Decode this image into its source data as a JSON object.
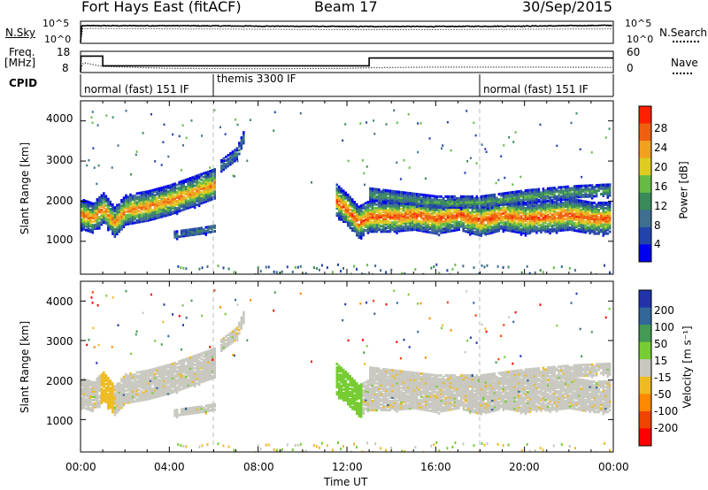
{
  "header": {
    "radar": "Fort Hays East (fitACF)",
    "beam": "Beam 17",
    "date": "30/Sep/2015"
  },
  "top_panels": {
    "nsky_label": "N.Sky",
    "nsky_ticks": [
      "10^5",
      "10^0"
    ],
    "nsearch_label": "N.Search",
    "nsearch_ticks": [
      "10^5",
      "10^0"
    ],
    "freq_label_1": "Freq.",
    "freq_label_2": "[MHz]",
    "freq_ticks": [
      "18",
      "8"
    ],
    "nave_label": "Nave",
    "nave_ticks": [
      "60",
      "0"
    ],
    "cpid_label": "CPID",
    "cpid_segments": [
      {
        "label": "normal (fast) 151 IF",
        "start_h": 0,
        "end_h": 6
      },
      {
        "label": "themis 3300 IF",
        "start_h": 6,
        "end_h": 18
      },
      {
        "label": "normal (fast) 151 IF",
        "start_h": 18,
        "end_h": 24
      }
    ]
  },
  "power_panel": {
    "ylabel": "Slant Range [km]",
    "cbar_label": "Power [dB]",
    "cbar_ticks": [
      "28",
      "24",
      "20",
      "16",
      "12",
      "8",
      "4"
    ]
  },
  "velocity_panel": {
    "ylabel": "Slant Range [km]",
    "cbar_label": "Velocity [m s⁻¹]",
    "cbar_ticks": [
      "200",
      "100",
      "50",
      "15",
      "-15",
      "-50",
      "-100",
      "-200"
    ]
  },
  "x_axis": {
    "ticks": [
      "00:00",
      "04:00",
      "08:00",
      "12:00",
      "16:00",
      "20:00",
      "00:00"
    ],
    "label": "Time UT"
  },
  "y_ticks": [
    "4000",
    "3000",
    "2000",
    "1000"
  ],
  "colors": {
    "power_scale": [
      "#0000ee",
      "#2244aa",
      "#3f6f8f",
      "#3a8a5a",
      "#66bb44",
      "#ddcc22",
      "#f2a020",
      "#ee6010",
      "#ff2000"
    ],
    "velocity_scale": [
      "#ff0000",
      "#ee4400",
      "#ff8800",
      "#eebb22",
      "#c8c8c0",
      "#77cc33",
      "#449955",
      "#336699",
      "#2233aa"
    ]
  },
  "chart_data": [
    {
      "type": "line",
      "title": "N.Sky / N.Search",
      "x_unit": "hours UT",
      "xlim": [
        0,
        24
      ],
      "series": [
        {
          "name": "N.Sky",
          "x": [
            0,
            0.05,
            0.1,
            4,
            8,
            12,
            16,
            20,
            24
          ],
          "y": [
            0.0,
            4.2,
            4.3,
            4.3,
            4.2,
            4.1,
            4.1,
            4.2,
            4.4
          ]
        },
        {
          "name": "N.Search",
          "x": [
            0,
            0.1,
            4,
            8,
            12,
            16,
            20,
            24
          ],
          "y": [
            0.0,
            3.6,
            3.5,
            3.4,
            3.3,
            3.3,
            3.4,
            3.5
          ]
        }
      ],
      "ylim": [
        0,
        5
      ]
    },
    {
      "type": "line",
      "title": "Freq / Nave",
      "xlim": [
        0,
        24
      ],
      "series": [
        {
          "name": "Freq",
          "x": [
            0,
            0.02,
            1.0,
            1.0,
            13.0,
            13.0,
            24
          ],
          "y": [
            8,
            16,
            16,
            11,
            11,
            15,
            15
          ]
        },
        {
          "name": "Nave",
          "x": [
            0,
            0.1,
            1.0,
            4,
            8,
            12,
            13,
            16,
            20,
            24
          ],
          "y": [
            0,
            28,
            16,
            10,
            9,
            10,
            12,
            14,
            14,
            13
          ]
        }
      ],
      "ylim_freq": [
        8,
        18
      ],
      "ylim_nave": [
        0,
        60
      ]
    },
    {
      "type": "heatmap",
      "title": "Power",
      "ylabel": "Slant Range [km]",
      "xlabel": "Time UT",
      "xlim": [
        0,
        24
      ],
      "ylim": [
        180,
        4500
      ],
      "colorbar": {
        "label": "Power [dB]",
        "range": [
          0,
          30
        ]
      },
      "bands": [
        {
          "x": [
            0,
            0.5,
            1.0,
            1.5,
            2,
            3,
            4,
            5,
            6
          ],
          "y_center": [
            1700,
            1600,
            1850,
            1500,
            1800,
            1900,
            2050,
            2250,
            2450
          ],
          "half_width": 280,
          "peak_db": 26
        },
        {
          "x": [
            4.2,
            5.5,
            6
          ],
          "y_center": [
            1200,
            1300,
            1350
          ],
          "half_width": 80,
          "peak_db": 10
        },
        {
          "x": [
            6.3,
            7,
            7.3
          ],
          "y_center": [
            2900,
            3200,
            3600
          ],
          "half_width": 120,
          "peak_db": 10
        },
        {
          "x": [
            11.5,
            12,
            12.5,
            13,
            14,
            15,
            16,
            17,
            18,
            19,
            20,
            21,
            22,
            23,
            23.9
          ],
          "y_center": [
            2050,
            1800,
            1500,
            1650,
            1650,
            1700,
            1600,
            1700,
            1550,
            1700,
            1600,
            1650,
            1700,
            1600,
            1600
          ],
          "half_width": 300,
          "peak_db": 28
        },
        {
          "x": [
            13,
            16,
            18,
            20,
            22,
            23.9
          ],
          "y_center": [
            2200,
            2000,
            2000,
            2150,
            2250,
            2300
          ],
          "half_width": 120,
          "peak_db": 14
        }
      ],
      "ground_clutter_range_km": [
        180,
        450
      ]
    },
    {
      "type": "heatmap",
      "title": "Velocity",
      "ylabel": "Slant Range [km]",
      "xlabel": "Time UT",
      "xlim": [
        0,
        24
      ],
      "ylim": [
        180,
        4500
      ],
      "colorbar": {
        "label": "Velocity [m s⁻¹]",
        "range": [
          -200,
          200
        ]
      },
      "dominant_velocity_bin": "-15 to 15",
      "notes_regions": [
        {
          "x": [
            11.5,
            12.5
          ],
          "y_range": [
            1300,
            2400
          ],
          "velocity_bin": "15 to 50"
        },
        {
          "x": [
            0.8,
            1.5
          ],
          "y_range": [
            1400,
            2200
          ],
          "velocity_bin": "-50 to -15"
        }
      ]
    }
  ]
}
